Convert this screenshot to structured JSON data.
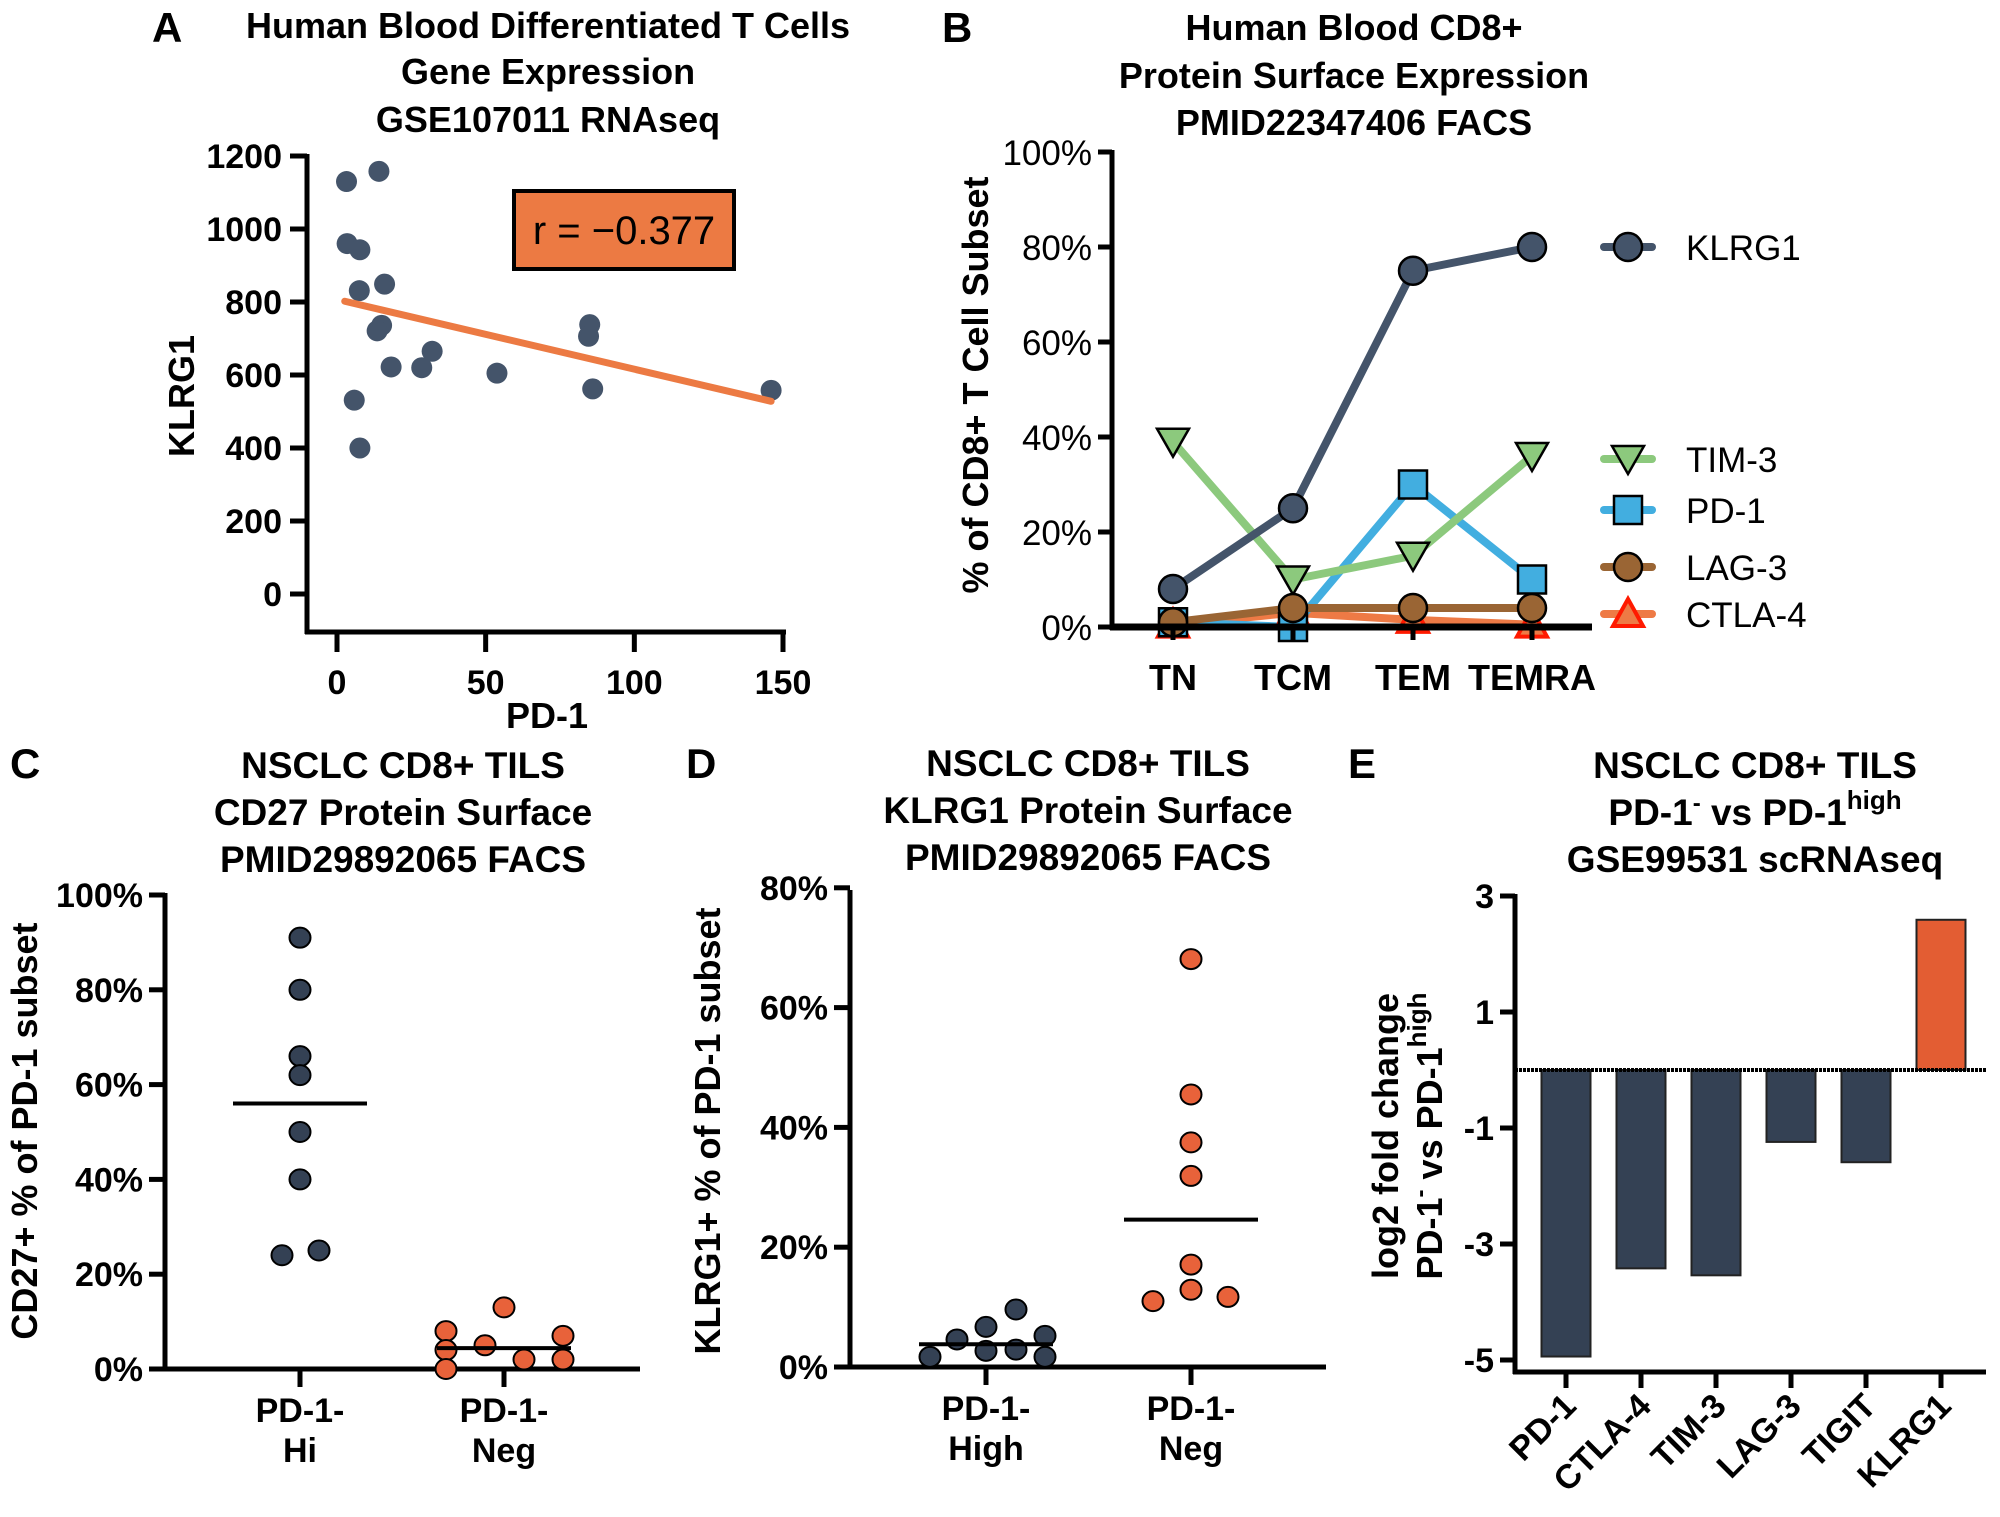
{
  "panels": {
    "A": {
      "letter": "A",
      "title_lines": [
        "Human Blood Differentiated T Cells",
        "Gene Expression",
        "GSE107011 RNAseq"
      ]
    },
    "B": {
      "letter": "B",
      "title_lines": [
        "Human Blood CD8+",
        "Protein Surface Expression",
        "PMID22347406 FACS"
      ]
    },
    "C": {
      "letter": "C",
      "title_lines": [
        "NSCLC CD8+ TILS",
        "CD27 Protein Surface",
        "PMID29892065 FACS"
      ]
    },
    "D": {
      "letter": "D",
      "title_lines": [
        "NSCLC CD8+ TILS",
        "KLRG1 Protein Surface",
        "PMID29892065 FACS"
      ]
    },
    "E": {
      "letter": "E",
      "title_line1": "NSCLC CD8+ TILS",
      "title_line2": {
        "a": "PD-1",
        "sup1": "-",
        "b": " vs PD-1",
        "sup2": "high"
      },
      "title_line3": "GSE99531 scRNAseq"
    }
  },
  "chart_data": [
    {
      "panel": "A",
      "type": "scatter",
      "xlabel": "PD-1",
      "ylabel": "KLRG1",
      "xlim": [
        0,
        150
      ],
      "ylim": [
        0,
        1200
      ],
      "xticks": [
        "0",
        "50",
        "100",
        "150"
      ],
      "yticks": [
        "0",
        "200",
        "400",
        "600",
        "800",
        "1000",
        "1200"
      ],
      "annotation": "r = −0.377",
      "annotation_color": "#ec7a43",
      "point_color": "#44546a",
      "trend_color": "#ec7a43",
      "points": [
        [
          3.2,
          1130
        ],
        [
          14.1,
          1158
        ],
        [
          3.4,
          960
        ],
        [
          7.7,
          943
        ],
        [
          7.5,
          831
        ],
        [
          16,
          849
        ],
        [
          15,
          736
        ],
        [
          13.5,
          721
        ],
        [
          18.2,
          622
        ],
        [
          28.5,
          620
        ],
        [
          32,
          665
        ],
        [
          53.8,
          605
        ],
        [
          85,
          738
        ],
        [
          84.6,
          706
        ],
        [
          86,
          562
        ],
        [
          5.8,
          531
        ],
        [
          7.7,
          400
        ],
        [
          146,
          558
        ]
      ],
      "trend_line": [
        [
          2.6,
          802
        ],
        [
          146,
          528
        ]
      ]
    },
    {
      "panel": "B",
      "type": "line",
      "ylabel": "% of CD8+ T Cell Subset",
      "ylim": [
        0,
        100
      ],
      "yticks": [
        "0%",
        "20%",
        "40%",
        "60%",
        "80%",
        "100%"
      ],
      "categories": [
        "TN",
        "TCM",
        "TEM",
        "TEMRA"
      ],
      "legend_placement": "right",
      "series": [
        {
          "name": "KLRG1",
          "values": [
            8,
            25,
            75,
            80
          ],
          "color": "#44546a",
          "marker": "circle"
        },
        {
          "name": "TIM-3",
          "values": [
            39,
            10,
            15,
            36
          ],
          "color": "#8cc97d",
          "marker": "triangle-down"
        },
        {
          "name": "PD-1",
          "values": [
            1,
            0,
            30,
            10
          ],
          "color": "#42aee0",
          "marker": "square"
        },
        {
          "name": "LAG-3",
          "values": [
            1,
            4,
            4,
            4
          ],
          "color": "#9a6534",
          "marker": "circle"
        },
        {
          "name": "CTLA-4",
          "values": [
            0.5,
            3,
            1.5,
            0.5
          ],
          "color": "#ee7a45",
          "marker": "triangle-up"
        }
      ]
    },
    {
      "panel": "C",
      "type": "scatter",
      "ylabel": "CD27+ % of PD-1 subset",
      "ylim": [
        0,
        100
      ],
      "yticks": [
        "0%",
        "20%",
        "40%",
        "60%",
        "80%",
        "100%"
      ],
      "categories": [
        [
          "PD-1-",
          "Hi"
        ],
        [
          "PD-1-",
          "Neg"
        ]
      ],
      "groups": [
        {
          "values": [
            91,
            80,
            66,
            62,
            50,
            40,
            24,
            25
          ],
          "mean": 56,
          "color": "#344154"
        },
        {
          "values": [
            8,
            4,
            0,
            5,
            13,
            2,
            7,
            2
          ],
          "mean": 4.4,
          "color": "#e8623a"
        }
      ]
    },
    {
      "panel": "D",
      "type": "scatter",
      "ylabel": "KLRG1+ % of PD-1 subset",
      "ylim": [
        0,
        80
      ],
      "yticks": [
        "0%",
        "20%",
        "40%",
        "60%",
        "80%"
      ],
      "categories": [
        [
          "PD-1-",
          "High"
        ],
        [
          "PD-1-",
          "Neg"
        ]
      ],
      "groups": [
        {
          "values": [
            1.7,
            4.6,
            6.7,
            9.6,
            2.7,
            2.9,
            5.2,
            1.7
          ],
          "mean": 3.8,
          "color": "#344154"
        },
        {
          "values": [
            68.1,
            45.5,
            37.5,
            31.9,
            17.1,
            12.9,
            11,
            11.7
          ],
          "mean": 24.6,
          "color": "#e8623a"
        }
      ]
    },
    {
      "panel": "E",
      "type": "bar",
      "ylabel_line1": "log2 fold change",
      "ylabel_line2": {
        "a": "PD-1",
        "sup1": "-",
        "b": " vs PD-1",
        "sup2": "high"
      },
      "ylim": [
        -5,
        3
      ],
      "yticks": [
        "3",
        "1",
        "-1",
        "-3",
        "-5"
      ],
      "categories": [
        "PD-1",
        "CTLA-4",
        "TIM-3",
        "LAG-3",
        "TIGIT",
        "KLRG1"
      ],
      "values": [
        -4.94,
        -3.42,
        -3.54,
        -1.24,
        -1.59,
        2.59
      ],
      "negative_color": "#344154",
      "positive_color": "#e35d33"
    }
  ]
}
